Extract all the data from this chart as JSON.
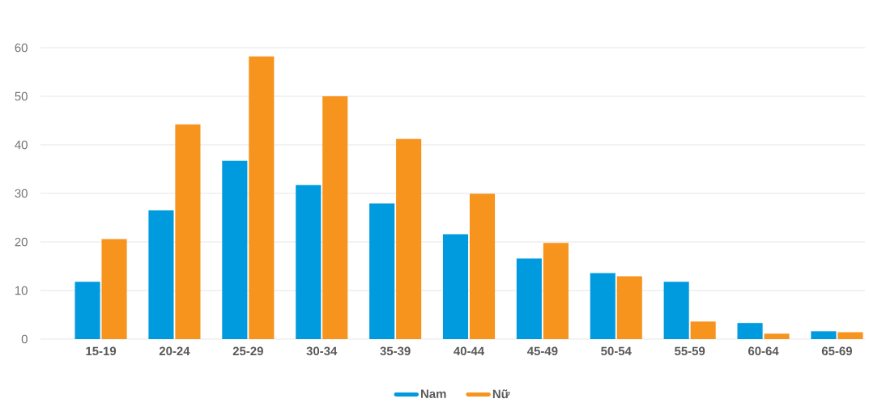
{
  "chart_data": {
    "type": "bar",
    "categories": [
      "15-19",
      "20-24",
      "25-29",
      "30-34",
      "35-39",
      "40-44",
      "45-49",
      "50-54",
      "55-59",
      "60-64",
      "65-69"
    ],
    "series": [
      {
        "name": "Nam",
        "color": "#009ade",
        "values": [
          11.8,
          26.5,
          36.7,
          31.7,
          27.9,
          21.6,
          16.6,
          13.6,
          11.8,
          3.3,
          1.6
        ]
      },
      {
        "name": "Nữ",
        "color": "#f7941d",
        "values": [
          20.6,
          44.2,
          58.2,
          50.0,
          41.2,
          29.9,
          19.8,
          12.9,
          3.6,
          1.1,
          1.4
        ]
      }
    ],
    "ylim": [
      0,
      60
    ],
    "yticks": [
      0,
      10,
      20,
      30,
      40,
      50,
      60
    ],
    "grid": "y",
    "legend": "bottom"
  }
}
